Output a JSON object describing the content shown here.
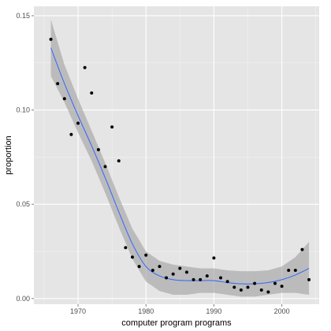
{
  "chart_data": {
    "type": "scatter",
    "title": "",
    "xlabel": "computer program programs",
    "ylabel": "proportion",
    "xlim": [
      1963.5,
      2005.5
    ],
    "ylim": [
      -0.003,
      0.155
    ],
    "x_ticks": [
      1970,
      1980,
      1990,
      2000
    ],
    "x_tick_labels": [
      "1970",
      "1980",
      "1990",
      "2000"
    ],
    "y_ticks": [
      0.0,
      0.05,
      0.1,
      0.15
    ],
    "y_tick_labels": [
      "0.00",
      "0.05",
      "0.10",
      "0.15"
    ],
    "grid": true,
    "colors": {
      "panel_background": "#e5e5e5",
      "grid_major": "#ffffff",
      "grid_minor": "#f2f2f2",
      "points": "#000000",
      "smooth_line": "#3366ff",
      "confidence_band": "#999999"
    },
    "series": [
      {
        "type": "scatter",
        "x": [
          1966,
          1967,
          1968,
          1969,
          1970,
          1971,
          1972,
          1973,
          1974,
          1975,
          1976,
          1977,
          1978,
          1979,
          1980,
          1981,
          1982,
          1983,
          1984,
          1985,
          1986,
          1987,
          1988,
          1989,
          1990,
          1991,
          1992,
          1993,
          1994,
          1995,
          1996,
          1997,
          1998,
          1999,
          2000,
          2001,
          2002,
          2003,
          2004
        ],
        "y": [
          0.1375,
          0.114,
          0.106,
          0.087,
          0.093,
          0.1225,
          0.109,
          0.079,
          0.07,
          0.091,
          0.073,
          0.027,
          0.022,
          0.017,
          0.023,
          0.015,
          0.017,
          0.011,
          0.013,
          0.016,
          0.014,
          0.01,
          0.01,
          0.012,
          0.0215,
          0.011,
          0.009,
          0.006,
          0.0045,
          0.006,
          0.008,
          0.0045,
          0.0035,
          0.008,
          0.0065,
          0.015,
          0.015,
          0.026,
          0.01
        ]
      },
      {
        "type": "line",
        "x": [
          1966,
          1968,
          1970,
          1972,
          1974,
          1976,
          1978,
          1980,
          1982,
          1984,
          1986,
          1988,
          1990,
          1992,
          1994,
          1996,
          1998,
          2000,
          2002,
          2004
        ],
        "y": [
          0.133,
          0.114,
          0.097,
          0.081,
          0.064,
          0.046,
          0.029,
          0.017,
          0.012,
          0.01,
          0.0095,
          0.0095,
          0.0095,
          0.0085,
          0.0078,
          0.0078,
          0.0085,
          0.01,
          0.0125,
          0.016
        ]
      },
      {
        "type": "area_band",
        "x": [
          1966,
          1968,
          1970,
          1972,
          1974,
          1976,
          1978,
          1980,
          1982,
          1984,
          1986,
          1988,
          1990,
          1992,
          1994,
          1996,
          1998,
          2000,
          2002,
          2004
        ],
        "y_low": [
          0.118,
          0.104,
          0.088,
          0.073,
          0.056,
          0.038,
          0.021,
          0.009,
          0.004,
          0.002,
          0.002,
          0.003,
          0.003,
          0.002,
          0.001,
          0.001,
          0.002,
          0.003,
          0.003,
          0.002
        ],
        "y_high": [
          0.148,
          0.124,
          0.106,
          0.089,
          0.072,
          0.054,
          0.037,
          0.025,
          0.02,
          0.018,
          0.017,
          0.016,
          0.016,
          0.015,
          0.0145,
          0.0145,
          0.015,
          0.017,
          0.022,
          0.03
        ]
      }
    ]
  }
}
